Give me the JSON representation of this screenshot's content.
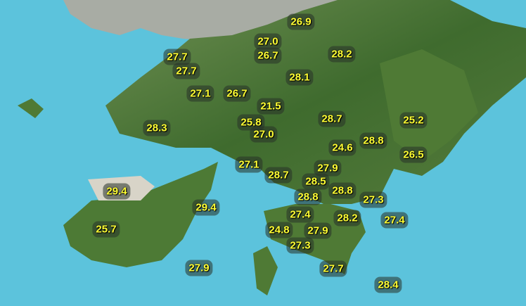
{
  "map": {
    "colors": {
      "sea": "#5cc3dc",
      "land": "#4e7a36",
      "urban": "#a9aea6",
      "label_text": "#ffff33"
    },
    "temperature_readings": [
      "26.9",
      "27.0",
      "26.7",
      "27.7",
      "27.7",
      "28.2",
      "28.1",
      "27.1",
      "26.7",
      "21.5",
      "28.7",
      "25.2",
      "25.8",
      "27.0",
      "28.3",
      "28.8",
      "24.6",
      "26.5",
      "27.1",
      "28.7",
      "27.9",
      "28.5",
      "28.8",
      "28.8",
      "27.3",
      "29.4",
      "29.4",
      "27.4",
      "28.2",
      "27.4",
      "25.7",
      "24.8",
      "27.9",
      "27.3",
      "27.9",
      "27.7",
      "28.4"
    ]
  }
}
